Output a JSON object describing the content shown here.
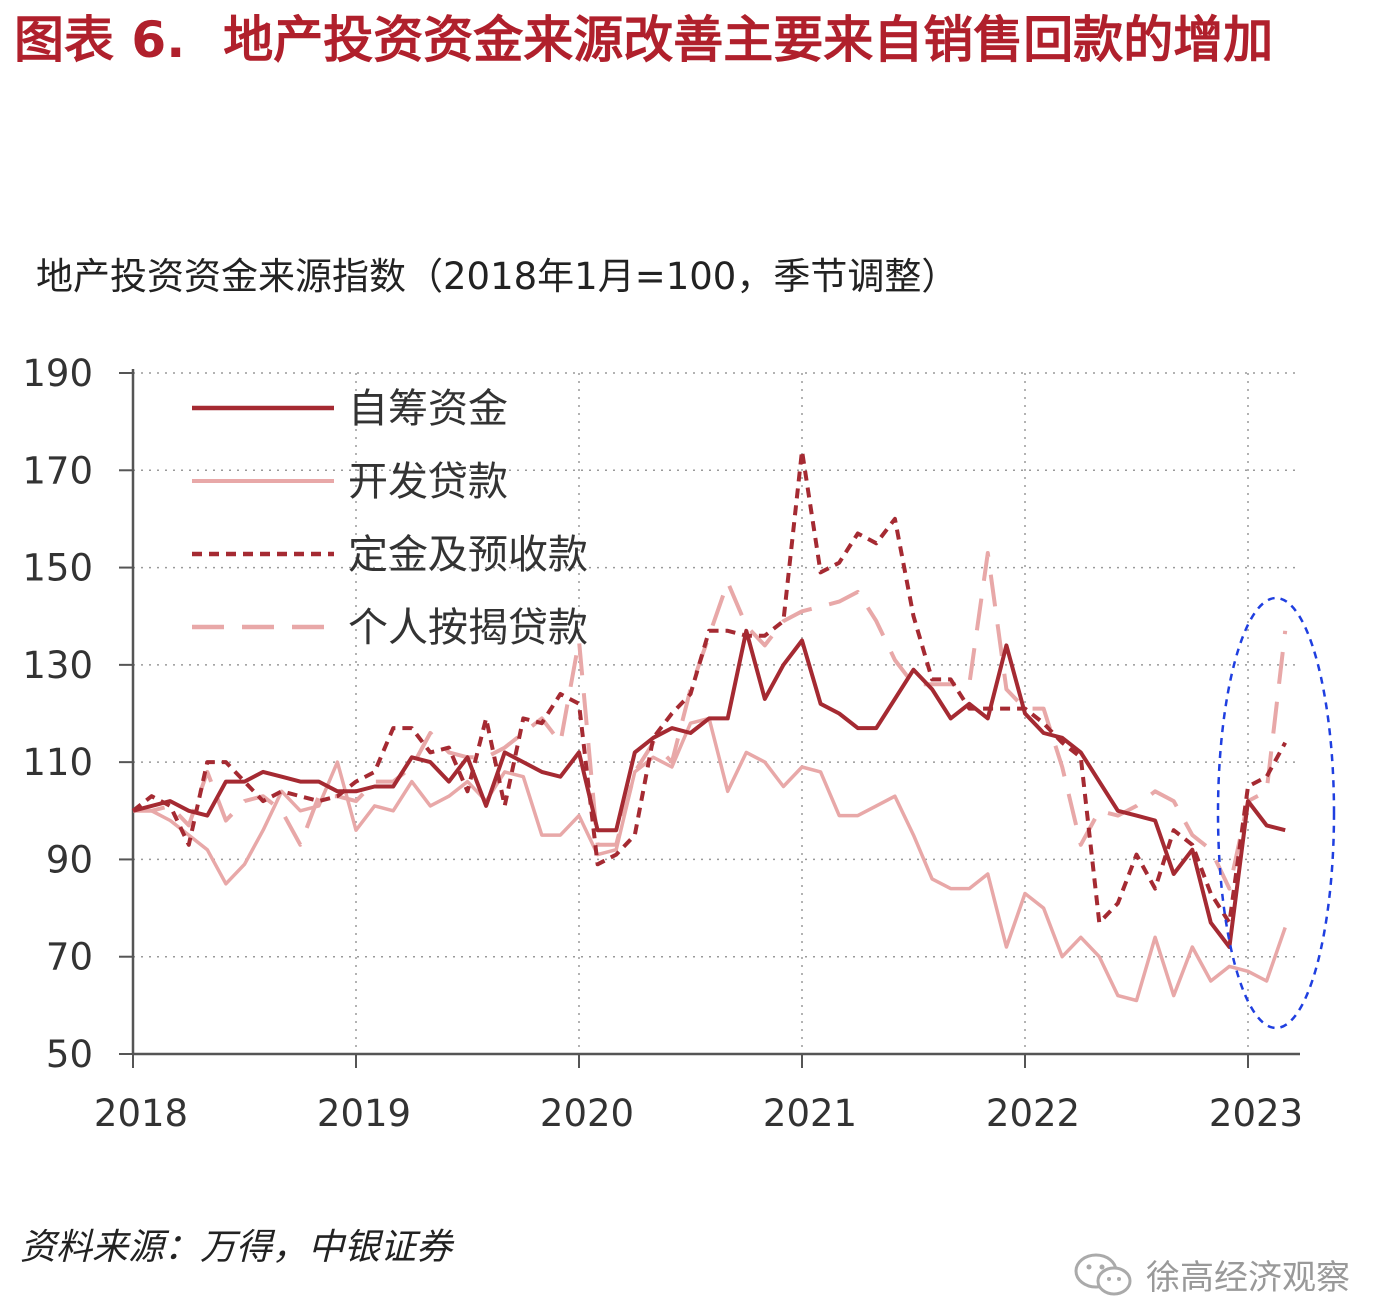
{
  "figure": {
    "label": "图表 6.",
    "title": "地产投资资金来源改善主要来自销售回款的增加"
  },
  "source": "资料来源：万得，中银证券",
  "watermark": "徐高经济观察",
  "chart_data": {
    "type": "line",
    "title": "地产投资资金来源指数（2018年1月=100，季节调整）",
    "xlabel": "",
    "ylabel": "",
    "x_ticks": [
      "2018",
      "2019",
      "2020",
      "2021",
      "2022",
      "2023"
    ],
    "y_ticks": [
      190,
      170,
      150,
      130,
      110,
      90,
      70,
      50
    ],
    "ylim": [
      50,
      190
    ],
    "x_range": [
      "2018-01",
      "2023-03"
    ],
    "grid": "dotted",
    "legend": "top-left",
    "annotation": "blue dashed ellipse highlighting 2022-12 to 2023-03",
    "series": [
      {
        "name": "自筹资金",
        "style": "solid",
        "color": "#a52a32",
        "values": [
          100,
          101,
          102,
          100,
          99,
          106,
          106,
          108,
          107,
          106,
          106,
          104,
          104,
          105,
          105,
          111,
          110,
          106,
          111,
          101,
          112,
          110,
          108,
          107,
          112,
          96,
          96,
          112,
          115,
          117,
          116,
          119,
          119,
          137,
          123,
          130,
          135,
          122,
          120,
          117,
          117,
          123,
          129,
          125,
          119,
          122,
          119,
          134,
          120,
          116,
          115,
          112,
          106,
          100,
          99,
          98,
          87,
          92,
          77,
          72,
          102,
          97,
          96
        ],
        "line_width": 4
      },
      {
        "name": "开发贷款",
        "style": "solid",
        "color": "#e8a8a8",
        "values": [
          100,
          100,
          98,
          95,
          92,
          85,
          89,
          96,
          104,
          100,
          101,
          110,
          96,
          101,
          100,
          106,
          101,
          103,
          106,
          102,
          108,
          107,
          95,
          95,
          99,
          91,
          92,
          108,
          111,
          109,
          118,
          119,
          104,
          112,
          110,
          105,
          109,
          108,
          99,
          99,
          101,
          103,
          95,
          86,
          84,
          84,
          87,
          72,
          83,
          80,
          70,
          74,
          70,
          62,
          61,
          74,
          62,
          72,
          65,
          68,
          67,
          65,
          76
        ],
        "line_width": 3.5
      },
      {
        "name": "定金及预收款",
        "style": "short-dash",
        "color": "#a52a32",
        "values": [
          100,
          103,
          101,
          93,
          110,
          110,
          106,
          102,
          104,
          103,
          102,
          103,
          106,
          108,
          117,
          117,
          112,
          113,
          104,
          119,
          101,
          119,
          118,
          124,
          122,
          89,
          91,
          95,
          115,
          120,
          124,
          137,
          137,
          136,
          136,
          139,
          174,
          149,
          151,
          157,
          155,
          160,
          140,
          127,
          127,
          121,
          121,
          121,
          121,
          118,
          114,
          111,
          77,
          81,
          91,
          84,
          96,
          93,
          83,
          77,
          105,
          107,
          114
        ],
        "line_width": 4
      },
      {
        "name": "个人按揭贷款",
        "style": "long-dash",
        "color": "#e8a8a8",
        "values": [
          100,
          100,
          101,
          97,
          108,
          98,
          102,
          103,
          100,
          93,
          103,
          103,
          102,
          106,
          106,
          109,
          116,
          112,
          111,
          111,
          113,
          116,
          119,
          114,
          135,
          93,
          93,
          108,
          114,
          110,
          125,
          136,
          147,
          138,
          134,
          139,
          141,
          142,
          143,
          145,
          139,
          131,
          126,
          126,
          126,
          126,
          153,
          125,
          121,
          121,
          109,
          93,
          100,
          99,
          101,
          104,
          102,
          95,
          92,
          84,
          102,
          104,
          137
        ],
        "line_width": 4
      }
    ]
  }
}
